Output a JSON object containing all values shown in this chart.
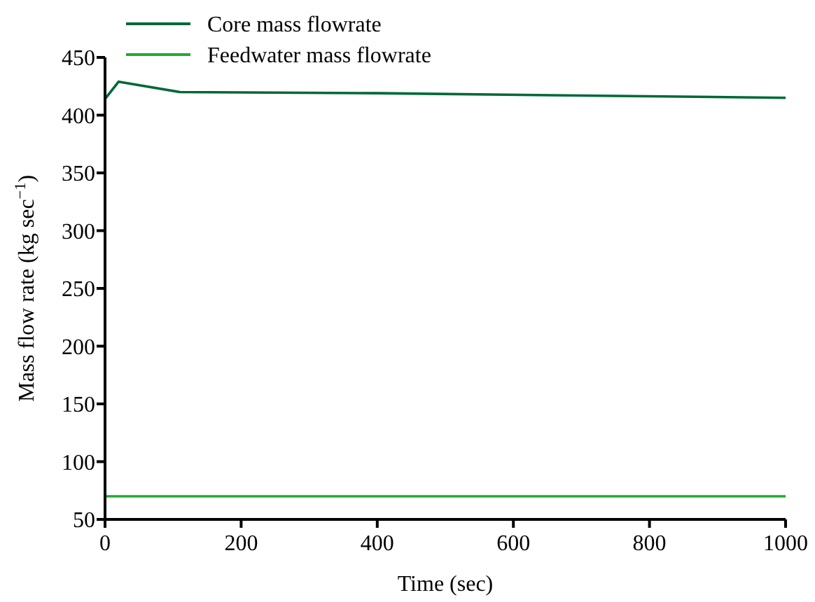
{
  "chart_data": {
    "type": "line",
    "xlabel": "Time (sec)",
    "ylabel": "Mass flow rate (kg sec$^{−1}$)",
    "xlim": [
      0,
      1000
    ],
    "ylim": [
      50,
      450
    ],
    "xticks": [
      0,
      200,
      400,
      600,
      800,
      1000
    ],
    "yticks": [
      50,
      100,
      150,
      200,
      250,
      300,
      350,
      400,
      450
    ],
    "legend": "top left",
    "grid": false,
    "marker": "none",
    "line_style": "solid",
    "series": [
      {
        "name": "Core mass flowrate",
        "color": "#006837",
        "x": [
          0,
          20,
          110,
          400,
          700,
          1000
        ],
        "values": [
          414,
          429,
          420,
          419,
          417,
          415
        ]
      },
      {
        "name": "Feedwater mass flowrate",
        "color": "#22aa33",
        "x": [
          0,
          1000
        ],
        "values": [
          70,
          70
        ]
      }
    ]
  }
}
